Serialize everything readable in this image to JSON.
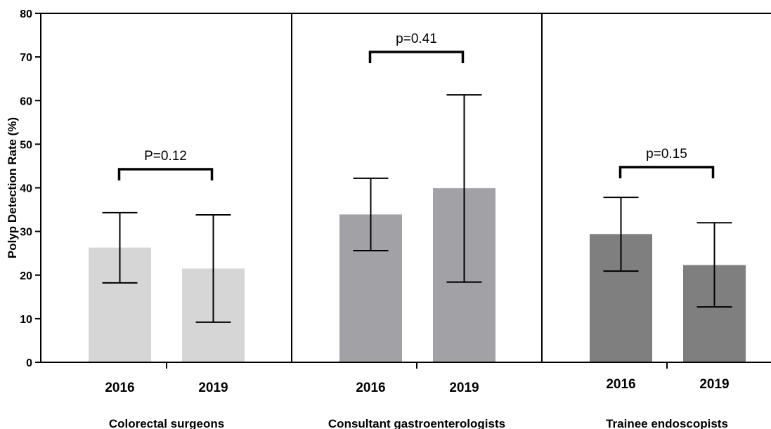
{
  "chart_data": {
    "type": "bar",
    "title": "",
    "ylabel": "Polyp Detection Rate (%)",
    "ylim": [
      0,
      80
    ],
    "yticks": [
      0,
      10,
      20,
      30,
      40,
      50,
      60,
      70,
      80
    ],
    "grid": false,
    "groups": [
      {
        "name": "Colorectal surgeons",
        "color": "#d6d6d6",
        "bars": [
          {
            "label": "2016",
            "value": 26.3,
            "error_low": 18.2,
            "error_high": 34.3
          },
          {
            "label": "2019",
            "value": 21.5,
            "error_low": 9.2,
            "error_high": 33.8
          }
        ],
        "annotation": "P=0.12"
      },
      {
        "name": "Consultant gastroenterologists",
        "color": "#a2a2a6",
        "bars": [
          {
            "label": "2016",
            "value": 33.9,
            "error_low": 25.6,
            "error_high": 42.2
          },
          {
            "label": "2019",
            "value": 39.9,
            "error_low": 18.4,
            "error_high": 61.3
          }
        ],
        "annotation": "p=0.41"
      },
      {
        "name": "Trainee endoscopists",
        "color": "#7f7f7f",
        "bars": [
          {
            "label": "2016",
            "value": 29.4,
            "error_low": 20.9,
            "error_high": 37.8
          },
          {
            "label": "2019",
            "value": 22.3,
            "error_low": 12.7,
            "error_high": 32.0
          }
        ],
        "annotation": "p=0.15"
      }
    ]
  }
}
